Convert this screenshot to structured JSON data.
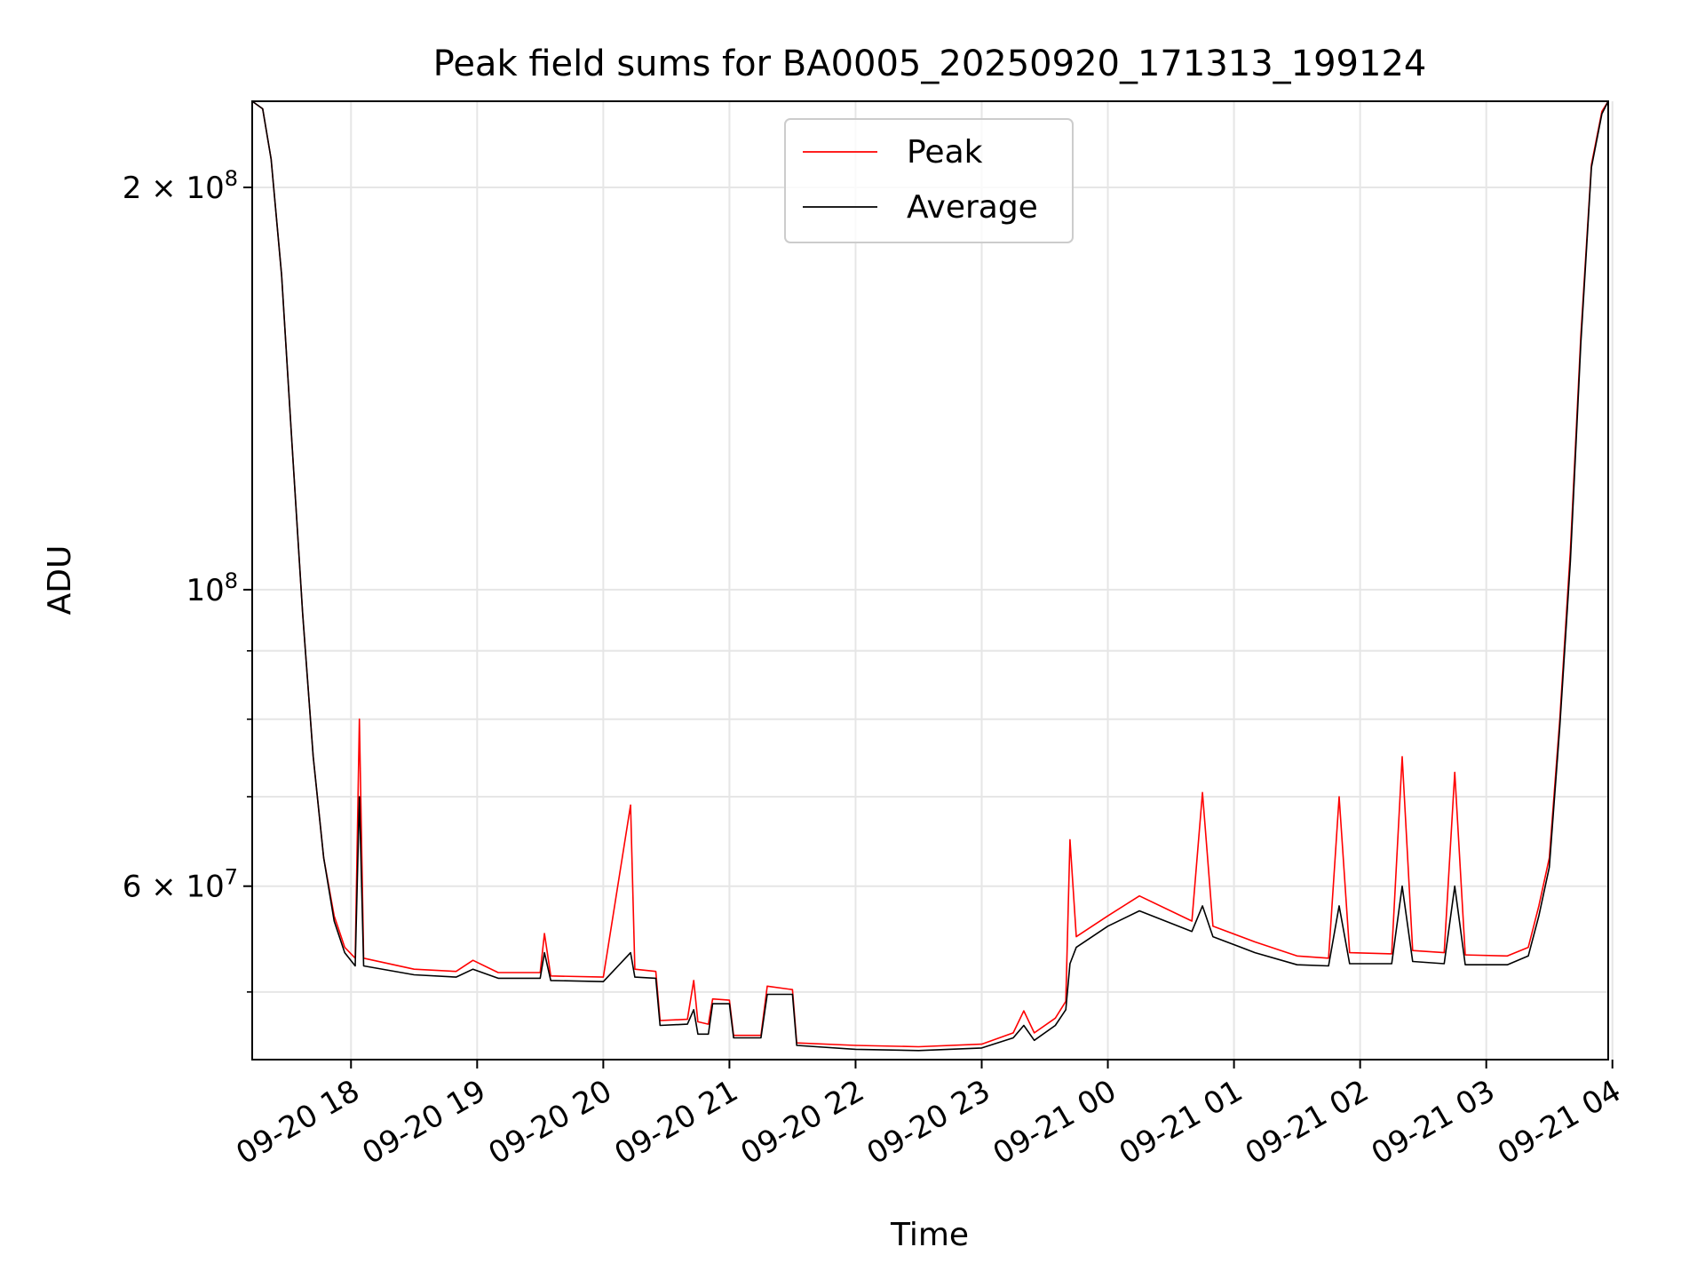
{
  "chart_data": {
    "type": "line",
    "title": "Peak field sums for BA0005_20250920_171313_199124",
    "xlabel": "Time",
    "ylabel": "ADU",
    "yscale": "log",
    "ylim": [
      44500000,
      232000000
    ],
    "xlim": [
      "2025-09-20 17:13",
      "2025-09-21 03:58"
    ],
    "x_ticks": [
      {
        "value": "2025-09-20 18:00",
        "label": "09-20 18"
      },
      {
        "value": "2025-09-20 19:00",
        "label": "09-20 19"
      },
      {
        "value": "2025-09-20 20:00",
        "label": "09-20 20"
      },
      {
        "value": "2025-09-20 21:00",
        "label": "09-20 21"
      },
      {
        "value": "2025-09-20 22:00",
        "label": "09-20 22"
      },
      {
        "value": "2025-09-20 23:00",
        "label": "09-20 23"
      },
      {
        "value": "2025-09-21 00:00",
        "label": "09-21 00"
      },
      {
        "value": "2025-09-21 01:00",
        "label": "09-21 01"
      },
      {
        "value": "2025-09-21 02:00",
        "label": "09-21 02"
      },
      {
        "value": "2025-09-21 03:00",
        "label": "09-21 03"
      },
      {
        "value": "2025-09-21 04:00",
        "label": "09-21 04"
      }
    ],
    "y_major_ticks": [
      {
        "value": 60000000,
        "mantissa": "6",
        "exponent": "7"
      },
      {
        "value": 100000000,
        "mantissa": "",
        "exponent": "8"
      },
      {
        "value": 200000000,
        "mantissa": "2",
        "exponent": "8"
      }
    ],
    "y_minor_ticks": [
      50000000,
      70000000,
      80000000,
      90000000
    ],
    "times_sep": "×",
    "tick_base": "10",
    "grid": true,
    "legend_position": "top-center",
    "series": [
      {
        "name": "Peak",
        "color": "#ff0000",
        "values": [
          [
            "2025-09-20 17:13",
            232000000
          ],
          [
            "2025-09-20 17:18",
            229000000
          ],
          [
            "2025-09-20 17:22",
            210000000
          ],
          [
            "2025-09-20 17:27",
            172000000
          ],
          [
            "2025-09-20 17:32",
            128000000
          ],
          [
            "2025-09-20 17:37",
            96000000
          ],
          [
            "2025-09-20 17:42",
            75000000
          ],
          [
            "2025-09-20 17:47",
            63000000
          ],
          [
            "2025-09-20 17:52",
            57000000
          ],
          [
            "2025-09-20 17:57",
            54000000
          ],
          [
            "2025-09-20 18:02",
            53000000
          ],
          [
            "2025-09-20 18:04",
            80000000
          ],
          [
            "2025-09-20 18:06",
            53000000
          ],
          [
            "2025-09-20 18:30",
            52000000
          ],
          [
            "2025-09-20 18:50",
            51800000
          ],
          [
            "2025-09-20 18:58",
            52800000
          ],
          [
            "2025-09-20 19:10",
            51700000
          ],
          [
            "2025-09-20 19:30",
            51700000
          ],
          [
            "2025-09-20 19:32",
            55300000
          ],
          [
            "2025-09-20 19:35",
            51400000
          ],
          [
            "2025-09-20 20:00",
            51300000
          ],
          [
            "2025-09-20 20:13",
            69000000
          ],
          [
            "2025-09-20 20:15",
            52000000
          ],
          [
            "2025-09-20 20:25",
            51800000
          ],
          [
            "2025-09-20 20:27",
            47600000
          ],
          [
            "2025-09-20 20:40",
            47700000
          ],
          [
            "2025-09-20 20:43",
            51000000
          ],
          [
            "2025-09-20 20:45",
            47500000
          ],
          [
            "2025-09-20 20:50",
            47300000
          ],
          [
            "2025-09-20 20:52",
            49400000
          ],
          [
            "2025-09-20 21:00",
            49300000
          ],
          [
            "2025-09-20 21:02",
            46400000
          ],
          [
            "2025-09-20 21:15",
            46400000
          ],
          [
            "2025-09-20 21:18",
            50500000
          ],
          [
            "2025-09-20 21:30",
            50200000
          ],
          [
            "2025-09-20 21:32",
            45800000
          ],
          [
            "2025-09-20 22:00",
            45600000
          ],
          [
            "2025-09-20 22:30",
            45500000
          ],
          [
            "2025-09-20 23:00",
            45700000
          ],
          [
            "2025-09-20 23:15",
            46600000
          ],
          [
            "2025-09-20 23:20",
            48400000
          ],
          [
            "2025-09-20 23:25",
            46600000
          ],
          [
            "2025-09-20 23:35",
            47800000
          ],
          [
            "2025-09-20 23:40",
            49200000
          ],
          [
            "2025-09-20 23:42",
            65000000
          ],
          [
            "2025-09-20 23:45",
            55000000
          ],
          [
            "2025-09-21 00:00",
            57000000
          ],
          [
            "2025-09-21 00:15",
            59000000
          ],
          [
            "2025-09-21 00:40",
            56500000
          ],
          [
            "2025-09-21 00:45",
            70500000
          ],
          [
            "2025-09-21 00:50",
            56000000
          ],
          [
            "2025-09-21 01:10",
            54500000
          ],
          [
            "2025-09-21 01:30",
            53200000
          ],
          [
            "2025-09-21 01:45",
            53000000
          ],
          [
            "2025-09-21 01:50",
            70000000
          ],
          [
            "2025-09-21 01:55",
            53500000
          ],
          [
            "2025-09-21 02:15",
            53400000
          ],
          [
            "2025-09-21 02:20",
            75000000
          ],
          [
            "2025-09-21 02:25",
            53700000
          ],
          [
            "2025-09-21 02:40",
            53500000
          ],
          [
            "2025-09-21 02:45",
            73000000
          ],
          [
            "2025-09-21 02:50",
            53300000
          ],
          [
            "2025-09-21 03:10",
            53200000
          ],
          [
            "2025-09-21 03:20",
            54000000
          ],
          [
            "2025-09-21 03:25",
            58000000
          ],
          [
            "2025-09-21 03:30",
            63000000
          ],
          [
            "2025-09-21 03:35",
            80000000
          ],
          [
            "2025-09-21 03:40",
            107000000
          ],
          [
            "2025-09-21 03:45",
            155000000
          ],
          [
            "2025-09-21 03:50",
            208000000
          ],
          [
            "2025-09-21 03:55",
            228000000
          ],
          [
            "2025-09-21 03:58",
            232000000
          ]
        ]
      },
      {
        "name": "Average",
        "color": "#000000",
        "values": [
          [
            "2025-09-20 17:13",
            232000000
          ],
          [
            "2025-09-20 17:18",
            229000000
          ],
          [
            "2025-09-20 17:22",
            210000000
          ],
          [
            "2025-09-20 17:27",
            172000000
          ],
          [
            "2025-09-20 17:32",
            128000000
          ],
          [
            "2025-09-20 17:37",
            96000000
          ],
          [
            "2025-09-20 17:42",
            75000000
          ],
          [
            "2025-09-20 17:47",
            63000000
          ],
          [
            "2025-09-20 17:52",
            56500000
          ],
          [
            "2025-09-20 17:57",
            53500000
          ],
          [
            "2025-09-20 18:02",
            52300000
          ],
          [
            "2025-09-20 18:04",
            70000000
          ],
          [
            "2025-09-20 18:06",
            52300000
          ],
          [
            "2025-09-20 18:30",
            51500000
          ],
          [
            "2025-09-20 18:50",
            51300000
          ],
          [
            "2025-09-20 18:58",
            52000000
          ],
          [
            "2025-09-20 19:10",
            51200000
          ],
          [
            "2025-09-20 19:30",
            51200000
          ],
          [
            "2025-09-20 19:32",
            53500000
          ],
          [
            "2025-09-20 19:35",
            51000000
          ],
          [
            "2025-09-20 20:00",
            50900000
          ],
          [
            "2025-09-20 20:13",
            53500000
          ],
          [
            "2025-09-20 20:15",
            51300000
          ],
          [
            "2025-09-20 20:25",
            51200000
          ],
          [
            "2025-09-20 20:27",
            47200000
          ],
          [
            "2025-09-20 20:40",
            47300000
          ],
          [
            "2025-09-20 20:43",
            48500000
          ],
          [
            "2025-09-20 20:45",
            46500000
          ],
          [
            "2025-09-20 20:50",
            46500000
          ],
          [
            "2025-09-20 20:52",
            49000000
          ],
          [
            "2025-09-20 21:00",
            49000000
          ],
          [
            "2025-09-20 21:02",
            46200000
          ],
          [
            "2025-09-20 21:15",
            46200000
          ],
          [
            "2025-09-20 21:18",
            49800000
          ],
          [
            "2025-09-20 21:30",
            49800000
          ],
          [
            "2025-09-20 21:32",
            45600000
          ],
          [
            "2025-09-20 22:00",
            45300000
          ],
          [
            "2025-09-20 22:30",
            45200000
          ],
          [
            "2025-09-20 23:00",
            45400000
          ],
          [
            "2025-09-20 23:15",
            46200000
          ],
          [
            "2025-09-20 23:20",
            47200000
          ],
          [
            "2025-09-20 23:25",
            46000000
          ],
          [
            "2025-09-20 23:35",
            47200000
          ],
          [
            "2025-09-20 23:40",
            48500000
          ],
          [
            "2025-09-20 23:42",
            52500000
          ],
          [
            "2025-09-20 23:45",
            54000000
          ],
          [
            "2025-09-21 00:00",
            56000000
          ],
          [
            "2025-09-21 00:15",
            57500000
          ],
          [
            "2025-09-21 00:40",
            55500000
          ],
          [
            "2025-09-21 00:45",
            58000000
          ],
          [
            "2025-09-21 00:50",
            55000000
          ],
          [
            "2025-09-21 01:10",
            53500000
          ],
          [
            "2025-09-21 01:30",
            52400000
          ],
          [
            "2025-09-21 01:45",
            52300000
          ],
          [
            "2025-09-21 01:50",
            58000000
          ],
          [
            "2025-09-21 01:55",
            52500000
          ],
          [
            "2025-09-21 02:15",
            52500000
          ],
          [
            "2025-09-21 02:20",
            60000000
          ],
          [
            "2025-09-21 02:25",
            52700000
          ],
          [
            "2025-09-21 02:40",
            52500000
          ],
          [
            "2025-09-21 02:45",
            60000000
          ],
          [
            "2025-09-21 02:50",
            52400000
          ],
          [
            "2025-09-21 03:10",
            52400000
          ],
          [
            "2025-09-21 03:20",
            53200000
          ],
          [
            "2025-09-21 03:25",
            57000000
          ],
          [
            "2025-09-21 03:30",
            62000000
          ],
          [
            "2025-09-21 03:35",
            79000000
          ],
          [
            "2025-09-21 03:40",
            105000000
          ],
          [
            "2025-09-21 03:45",
            153000000
          ],
          [
            "2025-09-21 03:50",
            207000000
          ],
          [
            "2025-09-21 03:55",
            227000000
          ],
          [
            "2025-09-21 03:58",
            232000000
          ]
        ]
      }
    ]
  }
}
